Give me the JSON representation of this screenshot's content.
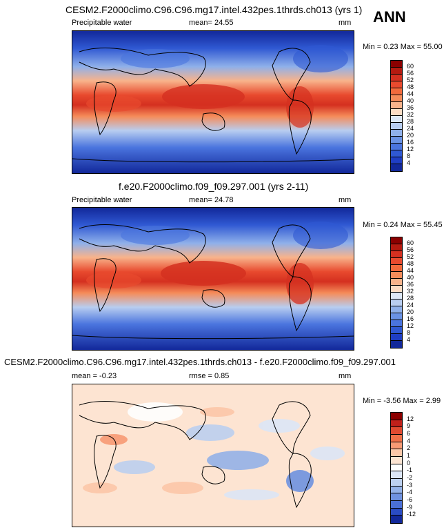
{
  "season": "ANN",
  "panels": [
    {
      "title": "CESM2.F2000climo.C96.C96.mg17.intel.432pes.1thrds.ch013 (yrs 1)",
      "variable": "Precipitable water",
      "stat_text": "mean=  24.55",
      "units": "mm",
      "minmax": "Min =  0.23 Max =  55.00",
      "colorbar": {
        "labels": [
          "60",
          "56",
          "52",
          "48",
          "44",
          "40",
          "36",
          "32",
          "28",
          "24",
          "20",
          "16",
          "12",
          "8",
          "4"
        ],
        "colors": [
          "#8b0000",
          "#b51a10",
          "#d43020",
          "#e84a2e",
          "#f26a3c",
          "#f58c5a",
          "#f8b38b",
          "#fcdcc4",
          "#dde8f7",
          "#b8cdf0",
          "#8fb0ea",
          "#6a92e4",
          "#4a74de",
          "#2f58d2",
          "#1f3ec4",
          "#12289a"
        ]
      }
    },
    {
      "title": "f.e20.F2000climo.f09_f09.297.001 (yrs 2-11)",
      "variable": "Precipitable water",
      "stat_text": "mean=  24.78",
      "units": "mm",
      "minmax": "Min =  0.24 Max =  55.45",
      "colorbar": {
        "labels": [
          "60",
          "56",
          "52",
          "48",
          "44",
          "40",
          "36",
          "32",
          "28",
          "24",
          "20",
          "16",
          "12",
          "8",
          "4"
        ],
        "colors": [
          "#8b0000",
          "#b51a10",
          "#d43020",
          "#e84a2e",
          "#f26a3c",
          "#f58c5a",
          "#f8b38b",
          "#fcdcc4",
          "#dde8f7",
          "#b8cdf0",
          "#8fb0ea",
          "#6a92e4",
          "#4a74de",
          "#2f58d2",
          "#1f3ec4",
          "#12289a"
        ]
      }
    },
    {
      "title": "CESM2.F2000climo.C96.C96.mg17.intel.432pes.1thrds.ch013 - f.e20.F2000climo.f09_f09.297.001",
      "stat_text": "mean =  -0.23",
      "rmse_text": "rmse =   0.85",
      "units": "mm",
      "minmax": "Min = -3.56 Max =   2.99",
      "colorbar": {
        "labels": [
          "12",
          "9",
          "6",
          "4",
          "2",
          "1",
          "0",
          "-1",
          "-2",
          "-3",
          "-4",
          "-6",
          "-9",
          "-12"
        ],
        "colors": [
          "#8b0000",
          "#c0201a",
          "#e04a30",
          "#f07048",
          "#f89a74",
          "#fcc7a8",
          "#fde4d2",
          "#ffffff",
          "#dce6f6",
          "#bcd0ef",
          "#94b2e8",
          "#6f92e0",
          "#4a6fd6",
          "#2a4cc4",
          "#12289a"
        ]
      }
    }
  ]
}
